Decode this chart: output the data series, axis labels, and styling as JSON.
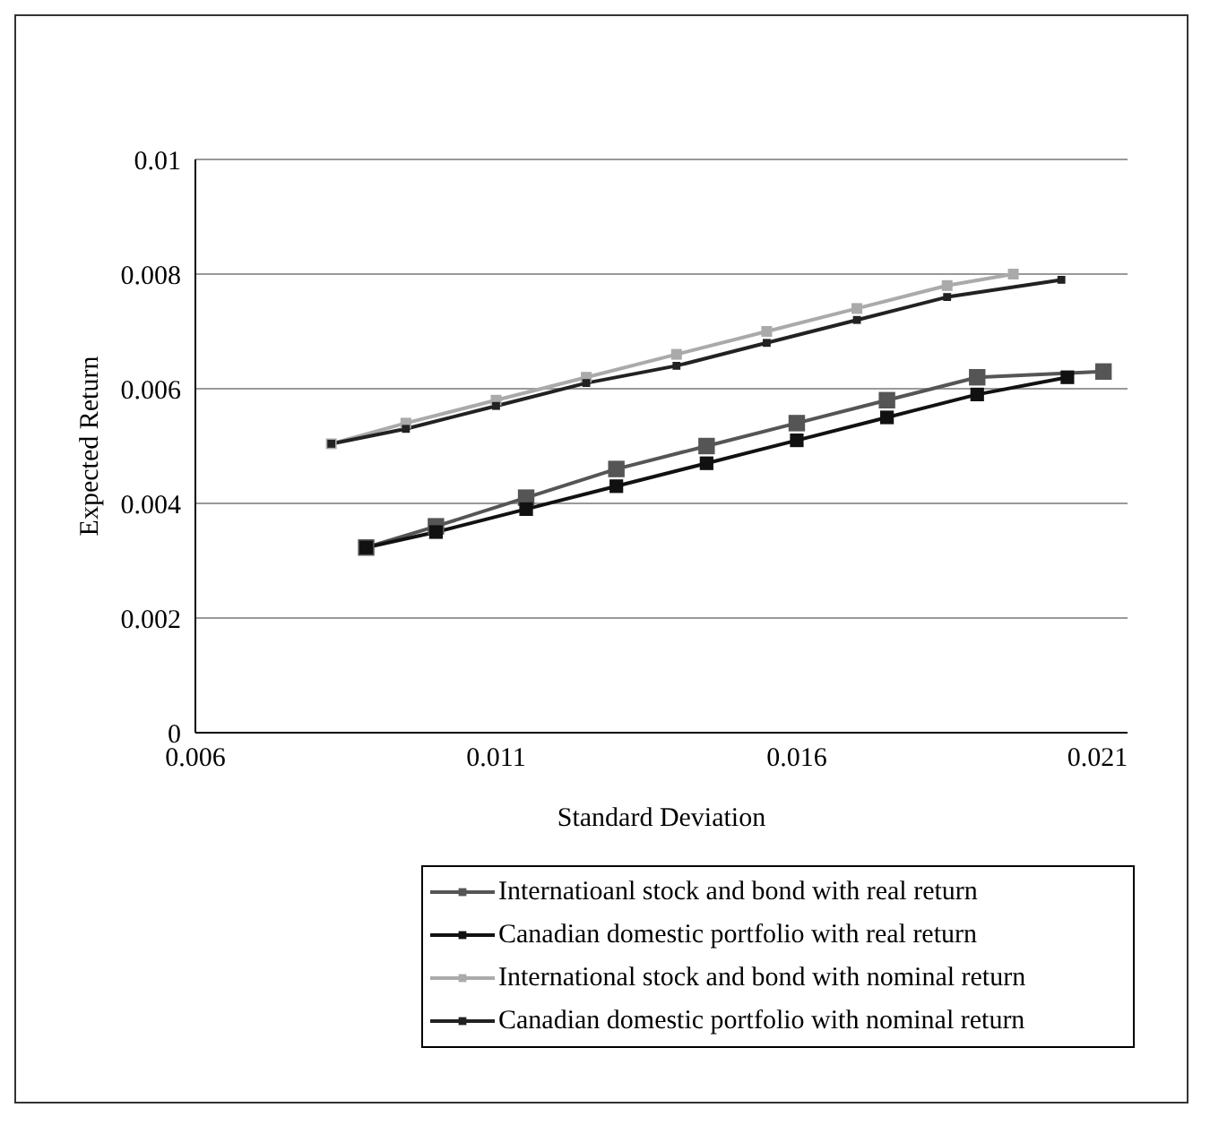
{
  "chart_data": {
    "type": "line",
    "xlabel": "Standard Deviation",
    "ylabel": "Expected Return",
    "xlim": [
      0.006,
      0.0215
    ],
    "xticks": [
      0.006,
      0.011,
      0.016,
      0.021
    ],
    "ylim": [
      0,
      0.01
    ],
    "yticks": [
      0,
      0.002,
      0.004,
      0.006,
      0.008,
      0.01
    ],
    "grid": "y",
    "legend": "bottom",
    "marker": "square",
    "line_style": "solid",
    "series": [
      {
        "name": "Internatioanl stock and bond with real return",
        "color": "#555555",
        "x": [
          0.00884,
          0.01,
          0.0115,
          0.013,
          0.0145,
          0.016,
          0.0175,
          0.019,
          0.0211
        ],
        "values": [
          0.00323,
          0.0036,
          0.0041,
          0.0046,
          0.005,
          0.0054,
          0.0058,
          0.0062,
          0.0063
        ]
      },
      {
        "name": "Canadian domestic portfolio with real return",
        "color": "#111111",
        "x": [
          0.00884,
          0.01,
          0.0115,
          0.013,
          0.0145,
          0.016,
          0.0175,
          0.019,
          0.0205
        ],
        "values": [
          0.00323,
          0.0035,
          0.0039,
          0.0043,
          0.0047,
          0.0051,
          0.0055,
          0.0059,
          0.0062
        ]
      },
      {
        "name": "International stock and bond with nominal return",
        "color": "#aaaaaa",
        "x": [
          0.00826,
          0.0095,
          0.011,
          0.0125,
          0.014,
          0.0155,
          0.017,
          0.0185,
          0.0196
        ],
        "values": [
          0.00504,
          0.0054,
          0.0058,
          0.0062,
          0.0066,
          0.007,
          0.0074,
          0.0078,
          0.008
        ]
      },
      {
        "name": "Canadian domestic portfolio with nominal return",
        "color": "#222222",
        "x": [
          0.00826,
          0.0095,
          0.011,
          0.0125,
          0.014,
          0.0155,
          0.017,
          0.0185,
          0.0204
        ],
        "values": [
          0.00504,
          0.0053,
          0.0057,
          0.0061,
          0.0064,
          0.0068,
          0.0072,
          0.0076,
          0.0079
        ]
      }
    ]
  }
}
